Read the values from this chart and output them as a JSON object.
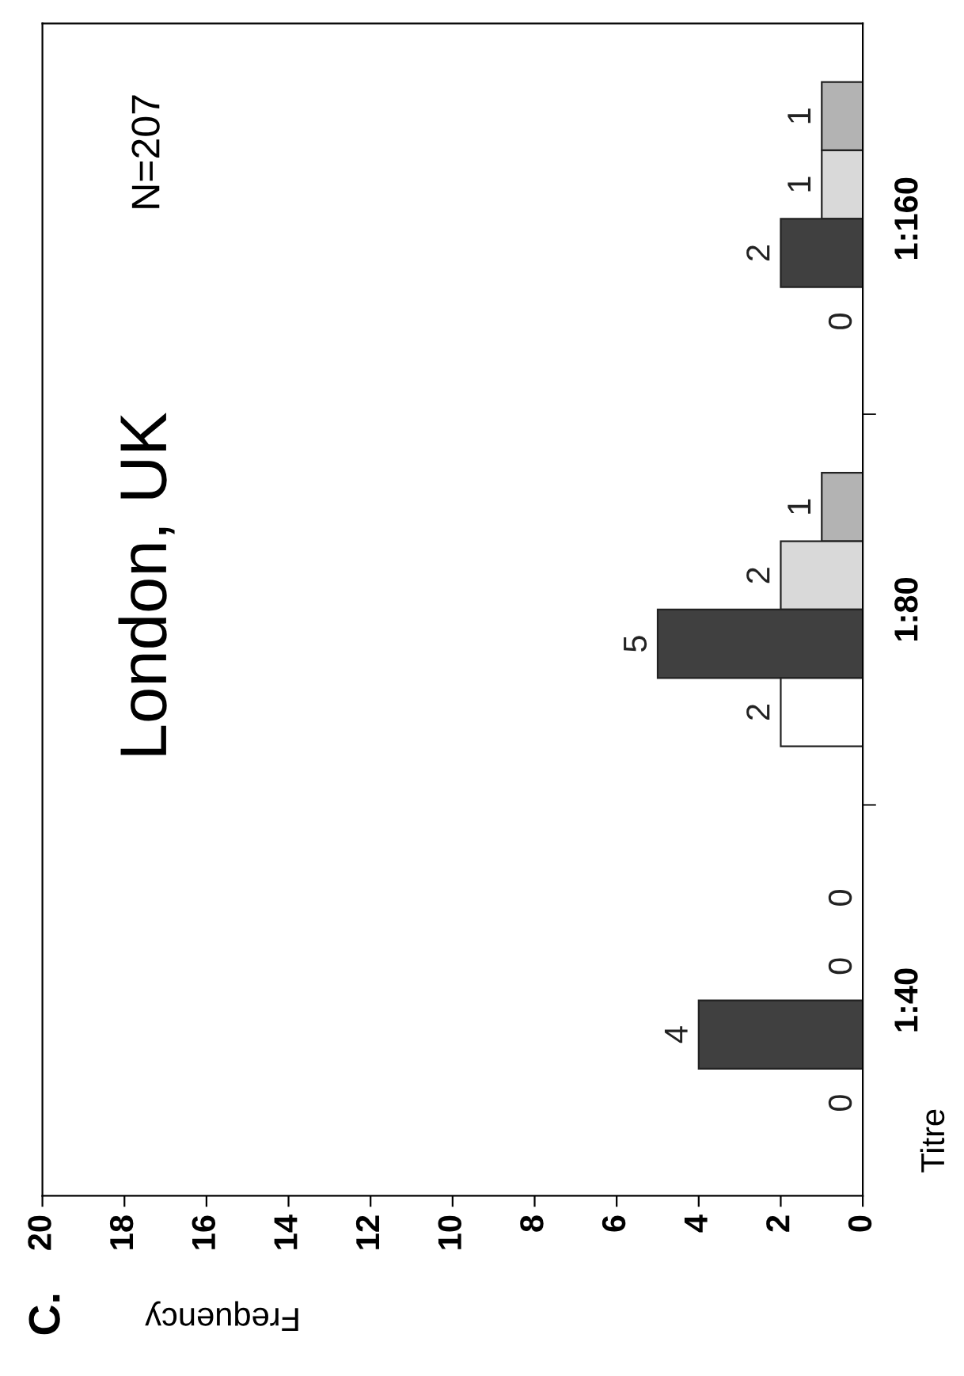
{
  "chart_data": {
    "type": "bar",
    "orientation": "horizontal",
    "title": "London, UK",
    "xlabel": "Frequency",
    "ylabel": "Titre",
    "annotations": [
      "N=207",
      "C."
    ],
    "categories": [
      "1:160",
      "1:80",
      "1:40"
    ],
    "series": [
      {
        "color": "#b3b3b3",
        "values": [
          1,
          1,
          0
        ]
      },
      {
        "color": "#d9d9d9",
        "values": [
          1,
          2,
          0
        ]
      },
      {
        "color": "#404040",
        "values": [
          2,
          5,
          4
        ]
      },
      {
        "color": "#ffffff",
        "values": [
          0,
          2,
          0
        ]
      }
    ],
    "xlim": [
      20,
      0
    ],
    "xticks": [
      0,
      2,
      4,
      6,
      8,
      10,
      12,
      14,
      16,
      18,
      20
    ],
    "data_labels": true,
    "grid": false,
    "legend": false
  }
}
